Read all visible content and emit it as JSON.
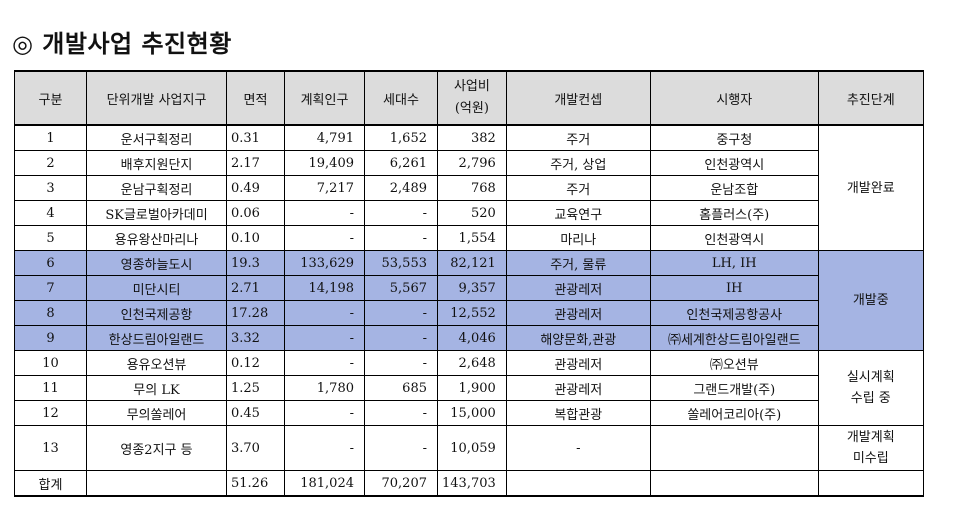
{
  "title": "◎ 개발사업 추진현황",
  "headers": [
    "구분",
    "단위개발 사업지구",
    "면적",
    "계획인구",
    "세대수",
    "사업비\n(억원)",
    "개발컨셉",
    "시행자",
    "추진단계"
  ],
  "rows": [
    {
      "no": "1",
      "name": "운서구획정리",
      "area": "0.31",
      "pop": "4,791",
      "households": "1,652",
      "cost": "382",
      "concept": "주거",
      "operator": "중구청"
    },
    {
      "no": "2",
      "name": "배후지원단지",
      "area": "2.17",
      "pop": "19,409",
      "households": "6,261",
      "cost": "2,796",
      "concept": "주거, 상업",
      "operator": "인천광역시"
    },
    {
      "no": "3",
      "name": "운남구획정리",
      "area": "0.49",
      "pop": "7,217",
      "households": "2,489",
      "cost": "768",
      "concept": "주거",
      "operator": "운남조합"
    },
    {
      "no": "4",
      "name": "SK글로벌아카데미",
      "area": "0.06",
      "pop": "-",
      "households": "-",
      "cost": "520",
      "concept": "교육연구",
      "operator": "홈플러스(주)"
    },
    {
      "no": "5",
      "name": "용유왕산마리나",
      "area": "0.10",
      "pop": "-",
      "households": "-",
      "cost": "1,554",
      "concept": "마리나",
      "operator": "인천광역시"
    },
    {
      "no": "6",
      "name": "영종하늘도시",
      "area": "19.3",
      "pop": "133,629",
      "households": "53,553",
      "cost": "82,121",
      "concept": "주거, 물류",
      "operator": "LH, IH"
    },
    {
      "no": "7",
      "name": "미단시티",
      "area": "2.71",
      "pop": "14,198",
      "households": "5,567",
      "cost": "9,357",
      "concept": "관광레저",
      "operator": "IH"
    },
    {
      "no": "8",
      "name": "인천국제공항",
      "area": "17.28",
      "pop": "-",
      "households": "-",
      "cost": "12,552",
      "concept": "관광레저",
      "operator": "인천국제공항공사"
    },
    {
      "no": "9",
      "name": "한상드림아일랜드",
      "area": "3.32",
      "pop": "-",
      "households": "-",
      "cost": "4,046",
      "concept": "해양문화,관광",
      "operator": "㈜세계한상드림아일랜드"
    },
    {
      "no": "10",
      "name": "용유오션뷰",
      "area": "0.12",
      "pop": "-",
      "households": "-",
      "cost": "2,648",
      "concept": "관광레저",
      "operator": "㈜오션뷰"
    },
    {
      "no": "11",
      "name": "무의 LK",
      "area": "1.25",
      "pop": "1,780",
      "households": "685",
      "cost": "1,900",
      "concept": "관광레저",
      "operator": "그랜드개발(주)"
    },
    {
      "no": "12",
      "name": "무의쏠레어",
      "area": "0.45",
      "pop": "-",
      "households": "-",
      "cost": "15,000",
      "concept": "복합관광",
      "operator": "쏠레어코리아(주)"
    },
    {
      "no": "13",
      "name": "영종2지구 등",
      "area": "3.70",
      "pop": "-",
      "households": "-",
      "cost": "10,059",
      "concept": "-",
      "operator": ""
    }
  ],
  "stages": [
    "개발완료",
    "개발중",
    "실시계획\n수립 중",
    "개발계획\n미수립"
  ],
  "total": {
    "label": "합계",
    "area": "51.26",
    "pop": "181,024",
    "households": "70,207",
    "cost": "143,703"
  },
  "colors": {
    "header_bg": "#dcdcdc",
    "highlight_bg": "#a5b4e3"
  }
}
